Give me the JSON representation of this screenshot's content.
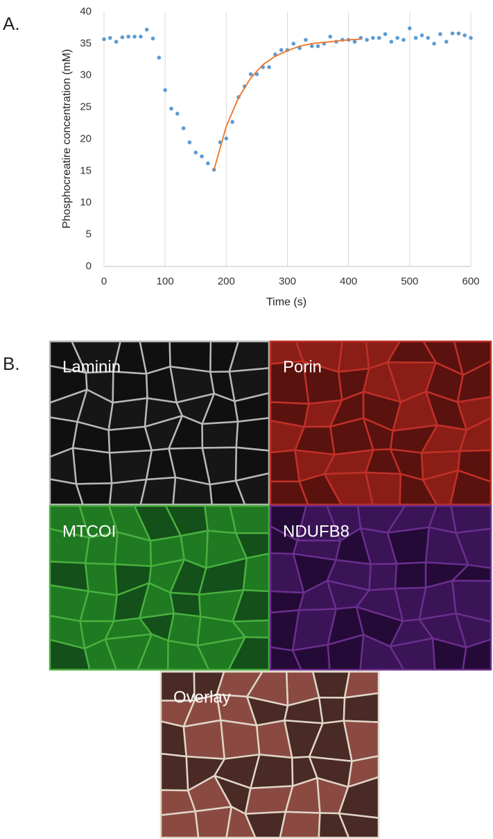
{
  "panel_labels": [
    "A.",
    "B."
  ],
  "chart_data": {
    "type": "scatter",
    "xlabel": "Time (s)",
    "ylabel": "Phosphocreatire concentration (mM)",
    "xlim": [
      0,
      600
    ],
    "ylim": [
      0,
      40
    ],
    "xticks": [
      0,
      100,
      200,
      300,
      400,
      500,
      600
    ],
    "yticks": [
      0,
      5,
      10,
      15,
      20,
      25,
      30,
      35,
      40
    ],
    "grid": "x",
    "series": [
      {
        "type": "scatter",
        "color": "#5b9bd5",
        "x": [
          0,
          10,
          20,
          30,
          40,
          50,
          60,
          70,
          80,
          90,
          100,
          110,
          120,
          130,
          140,
          150,
          160,
          170,
          180,
          190,
          200,
          210,
          220,
          230,
          240,
          250,
          260,
          270,
          280,
          290,
          300,
          310,
          320,
          330,
          340,
          350,
          360,
          370,
          380,
          390,
          400,
          410,
          420,
          430,
          440,
          450,
          460,
          470,
          480,
          490,
          500,
          510,
          520,
          530,
          540,
          550,
          560,
          570,
          580,
          590,
          600
        ],
        "values": [
          35.7,
          35.9,
          35.3,
          36.0,
          36.1,
          36.1,
          36.1,
          37.2,
          35.8,
          32.8,
          27.7,
          24.8,
          24.0,
          21.7,
          19.5,
          17.9,
          17.3,
          16.2,
          15.2,
          19.5,
          20.1,
          22.7,
          26.6,
          28.3,
          30.2,
          30.2,
          31.3,
          31.3,
          33.3,
          34.0,
          34.0,
          35.0,
          34.3,
          35.6,
          34.6,
          34.6,
          35.0,
          36.1,
          35.3,
          35.6,
          35.6,
          35.3,
          35.9,
          35.6,
          35.9,
          35.9,
          36.5,
          35.3,
          35.9,
          35.6,
          37.4,
          35.9,
          36.3,
          35.9,
          35.0,
          36.5,
          35.3,
          36.6,
          36.6,
          36.3,
          35.9
        ]
      },
      {
        "type": "line",
        "color": "#ed7d31",
        "x": [
          180,
          200,
          220,
          240,
          260,
          280,
          300,
          320,
          340,
          360,
          380,
          400,
          420
        ],
        "values": [
          15.2,
          22.0,
          26.5,
          29.6,
          31.7,
          33.0,
          33.9,
          34.6,
          35.0,
          35.2,
          35.4,
          35.6,
          35.7
        ]
      }
    ]
  },
  "images": [
    {
      "label": "Laminin"
    },
    {
      "label": "Porin"
    },
    {
      "label": "MTCOI"
    },
    {
      "label": "NDUFB8"
    },
    {
      "label": "Overlay"
    }
  ]
}
